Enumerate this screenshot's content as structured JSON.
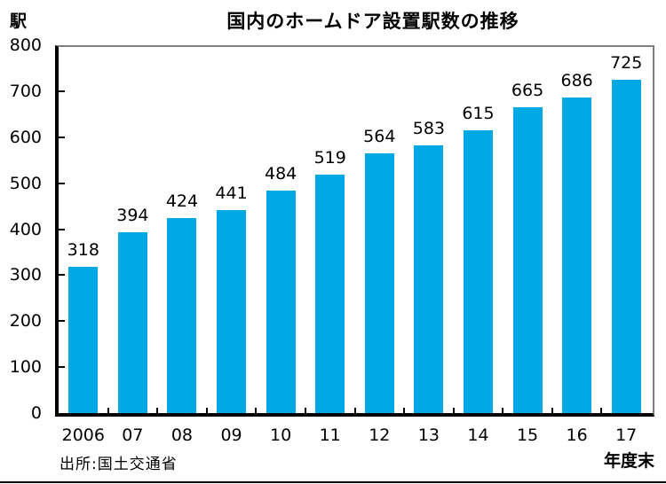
{
  "chart_data": {
    "type": "bar",
    "title": "国内のホームドア設置駅数の推移",
    "unit_label": "駅",
    "xlabel": "年度末",
    "source": "出所:国土交通省",
    "categories": [
      "2006",
      "07",
      "08",
      "09",
      "10",
      "11",
      "12",
      "13",
      "14",
      "15",
      "16",
      "17"
    ],
    "values": [
      318,
      394,
      424,
      441,
      484,
      519,
      564,
      583,
      615,
      665,
      686,
      725
    ],
    "ylim": [
      0,
      800
    ],
    "ytick_step": 100,
    "ytick_labels": [
      "0",
      "100",
      "200",
      "300",
      "400",
      "500",
      "600",
      "700",
      "800"
    ],
    "bar_color": "#00A8E4",
    "axis_color": "#000000",
    "box_line_color": "#7f7f7f",
    "grid": false,
    "value_labels_shown": true,
    "legend": "none"
  }
}
